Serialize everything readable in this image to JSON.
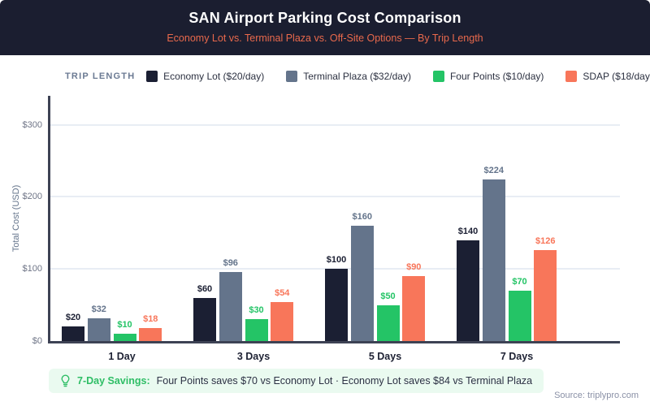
{
  "header": {
    "title": "SAN Airport Parking Cost Comparison",
    "subtitle": "Economy Lot vs. Terminal Plaza vs. Off-Site Options — By Trip Length"
  },
  "legend": {
    "label": "TRIP LENGTH"
  },
  "chart_data": {
    "type": "bar",
    "title": "SAN Airport Parking Cost Comparison",
    "categories": [
      "1 Day",
      "3 Days",
      "5 Days",
      "7 Days"
    ],
    "series": [
      {
        "name": "Economy Lot ($20/day)",
        "color": "#1b1f33",
        "label_color": "#1b1f33",
        "values": [
          20,
          60,
          100,
          140
        ]
      },
      {
        "name": "Terminal Plaza ($32/day)",
        "color": "#64748b",
        "label_color": "#64748b",
        "values": [
          32,
          96,
          160,
          224
        ]
      },
      {
        "name": "Four Points ($10/day)",
        "color": "#24c466",
        "label_color": "#24c466",
        "values": [
          10,
          30,
          50,
          70
        ]
      },
      {
        "name": "SDAP ($18/day)",
        "color": "#f8765a",
        "label_color": "#f8765a",
        "values": [
          18,
          54,
          90,
          126
        ]
      }
    ],
    "xlabel": "",
    "ylabel": "Total Cost (USD)",
    "ylim": [
      0,
      340
    ],
    "yticks": [
      0,
      100,
      200,
      300
    ],
    "ytick_labels": [
      "$0",
      "$100",
      "$200",
      "$300"
    ],
    "value_label_prefix": "$",
    "grid": true,
    "legend_position": "top"
  },
  "footer": {
    "savings_icon": "lightbulb-icon",
    "savings_label": "7-Day Savings:",
    "savings_text": "Four Points saves $70 vs Economy Lot · Economy Lot saves $84 vs Terminal Plaza",
    "source": "Source: triplypro.com"
  },
  "colors": {
    "header_bg": "#1b1e30",
    "title_text": "#ffffff",
    "subtitle_text": "#e9694c",
    "axis_line": "#3d4254",
    "gridline": "#e8edf4",
    "savings_bg": "#eafaf0",
    "savings_accent": "#2fbe66",
    "source_text": "#8a90a6"
  }
}
